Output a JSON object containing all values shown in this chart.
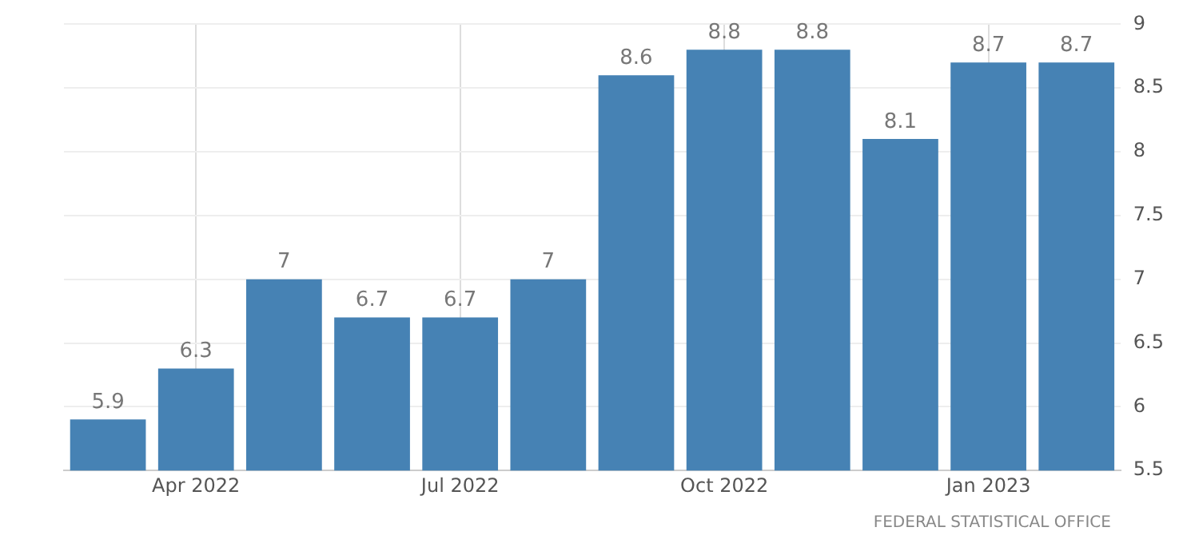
{
  "chart_data": {
    "type": "bar",
    "categories": [
      null,
      "Apr 2022",
      null,
      null,
      "Jul 2022",
      null,
      null,
      "Oct 2022",
      null,
      null,
      "Jan 2023",
      null
    ],
    "values": [
      5.9,
      6.3,
      7,
      6.7,
      6.7,
      7,
      8.6,
      8.8,
      8.8,
      8.1,
      8.7,
      8.7
    ],
    "color": "#4682b4",
    "ylim": [
      5.5,
      9
    ],
    "yticks": [
      5.5,
      6,
      6.5,
      7,
      7.5,
      8,
      8.5,
      9
    ],
    "grid": true,
    "data_labels": true,
    "annotations": [
      "FEDERAL STATISTICAL OFFICE"
    ]
  }
}
